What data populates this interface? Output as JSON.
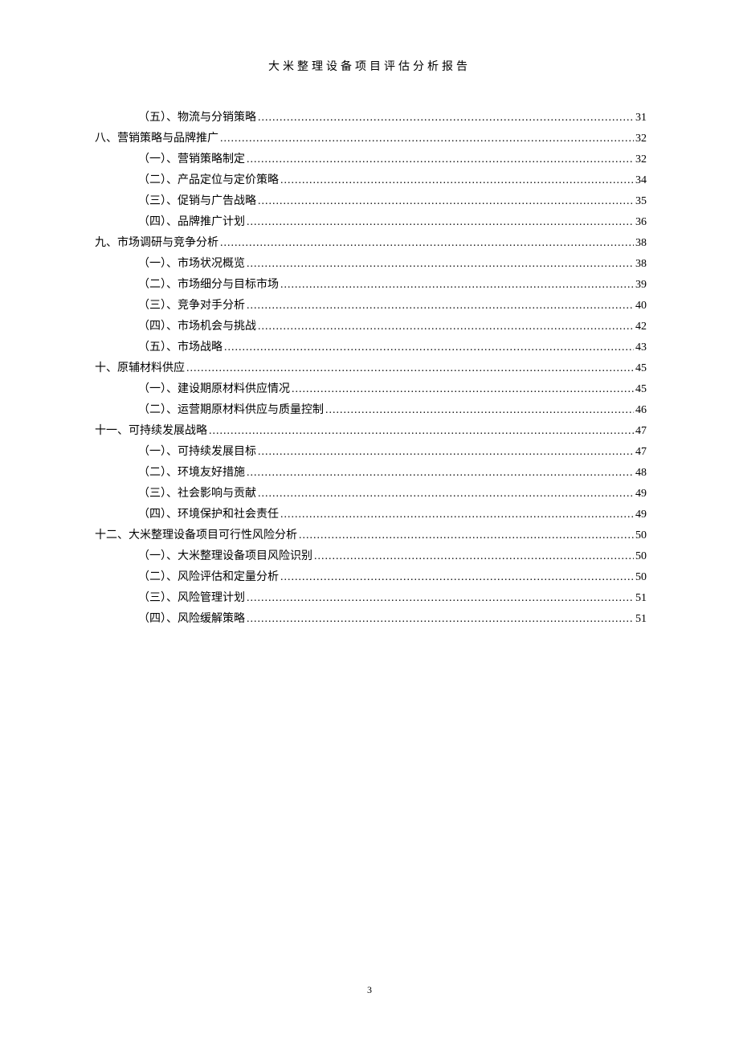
{
  "header_title": "大米整理设备项目评估分析报告",
  "page_number": "3",
  "toc_entries": [
    {
      "level": 1,
      "label": "（五）、物流与分销策略",
      "page": "31"
    },
    {
      "level": 0,
      "label": "八、营销策略与品牌推广",
      "page": "32"
    },
    {
      "level": 1,
      "label": "（一）、营销策略制定",
      "page": "32"
    },
    {
      "level": 1,
      "label": "（二）、产品定位与定价策略",
      "page": "34"
    },
    {
      "level": 1,
      "label": "（三）、促销与广告战略",
      "page": "35"
    },
    {
      "level": 1,
      "label": "（四）、品牌推广计划",
      "page": "36"
    },
    {
      "level": 0,
      "label": "九、市场调研与竞争分析",
      "page": "38"
    },
    {
      "level": 1,
      "label": "（一）、市场状况概览",
      "page": "38"
    },
    {
      "level": 1,
      "label": "（二）、市场细分与目标市场",
      "page": "39"
    },
    {
      "level": 1,
      "label": "（三）、竞争对手分析",
      "page": "40"
    },
    {
      "level": 1,
      "label": "（四）、市场机会与挑战",
      "page": "42"
    },
    {
      "level": 1,
      "label": "（五）、市场战略 ",
      "page": "43"
    },
    {
      "level": 0,
      "label": "十、原辅材料供应 ",
      "page": "45"
    },
    {
      "level": 1,
      "label": "（一）、建设期原材料供应情况",
      "page": "45"
    },
    {
      "level": 1,
      "label": "（二）、运营期原材料供应与质量控制",
      "page": "46"
    },
    {
      "level": 0,
      "label": "十一、可持续发展战略",
      "page": "47"
    },
    {
      "level": 1,
      "label": "（一）、可持续发展目标",
      "page": "47"
    },
    {
      "level": 1,
      "label": "（二）、环境友好措施",
      "page": "48"
    },
    {
      "level": 1,
      "label": "（三）、社会影响与贡献",
      "page": "49"
    },
    {
      "level": 1,
      "label": "（四）、环境保护和社会责任",
      "page": "49"
    },
    {
      "level": 0,
      "label": "十二、大米整理设备项目可行性风险分析",
      "page": "50"
    },
    {
      "level": 1,
      "label": "（一）、大米整理设备项目风险识别",
      "page": "50"
    },
    {
      "level": 1,
      "label": "（二）、风险评估和定量分析",
      "page": "50"
    },
    {
      "level": 1,
      "label": "（三）、风险管理计划",
      "page": "51"
    },
    {
      "level": 1,
      "label": "（四）、风险缓解策略",
      "page": "51"
    }
  ]
}
